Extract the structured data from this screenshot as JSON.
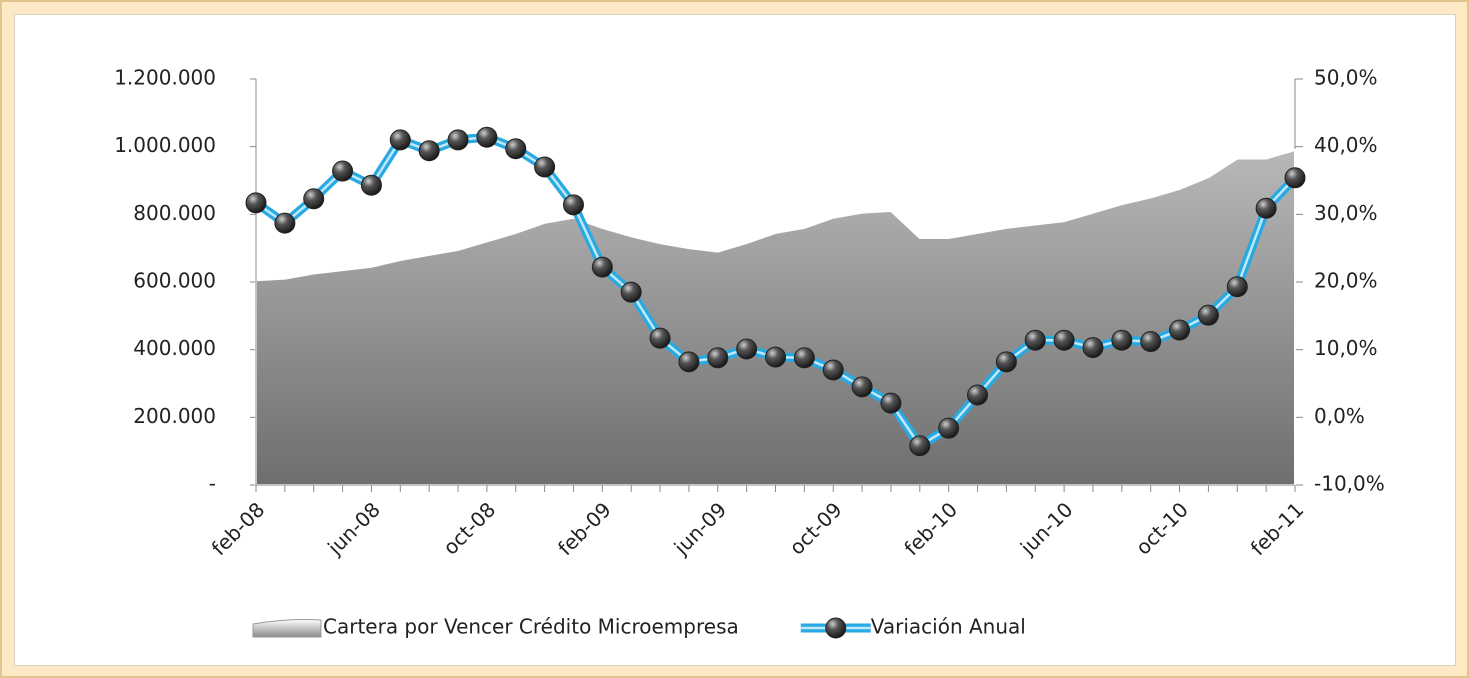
{
  "chart_data": {
    "type": "area",
    "categories": [
      "feb-08",
      null,
      null,
      null,
      "jun-08",
      null,
      null,
      null,
      "oct-08",
      null,
      null,
      null,
      "feb-09",
      null,
      null,
      null,
      "jun-09",
      null,
      null,
      null,
      "oct-09",
      null,
      null,
      null,
      "feb-10",
      null,
      null,
      null,
      "jun-10",
      null,
      null,
      null,
      "oct-10",
      null,
      null,
      null,
      "feb-11"
    ],
    "series": [
      {
        "name": "Cartera por Vencer Crédito Microempresa",
        "type": "area",
        "color": "#9a9a9a",
        "values": [
          605000,
          610000,
          625000,
          635000,
          645000,
          665000,
          680000,
          695000,
          720000,
          745000,
          775000,
          790000,
          760000,
          735000,
          715000,
          700000,
          690000,
          715000,
          745000,
          760000,
          790000,
          805000,
          810000,
          730000,
          730000,
          745000,
          760000,
          770000,
          780000,
          805000,
          830000,
          850000,
          875000,
          910000,
          965000,
          965000,
          990000
        ]
      },
      {
        "name": "Variación Anual",
        "type": "line",
        "axis": "y2",
        "color": "#29a9e1",
        "values": [
          31.7,
          28.7,
          32.3,
          36.4,
          34.3,
          41.0,
          39.4,
          41.0,
          41.4,
          39.7,
          37.0,
          31.4,
          22.2,
          18.5,
          11.7,
          8.2,
          8.8,
          10.1,
          8.9,
          8.8,
          7.0,
          4.5,
          2.1,
          -4.2,
          -1.6,
          3.3,
          8.2,
          11.4,
          11.4,
          10.3,
          11.4,
          11.2,
          12.9,
          15.1,
          19.3,
          30.9,
          35.4
        ]
      }
    ],
    "ylim": [
      0,
      1200000
    ],
    "yticks": [
      {
        "value": 0,
        "label": "-"
      },
      {
        "value": 200000,
        "label": "200.000"
      },
      {
        "value": 400000,
        "label": "400.000"
      },
      {
        "value": 600000,
        "label": "600.000"
      },
      {
        "value": 800000,
        "label": "800.000"
      },
      {
        "value": 1000000,
        "label": "1.000.000"
      },
      {
        "value": 1200000,
        "label": "1.200.000"
      }
    ],
    "y2lim": [
      -10,
      50
    ],
    "y2ticks": [
      {
        "value": -10,
        "label": "-10,0%"
      },
      {
        "value": 0,
        "label": "0,0%"
      },
      {
        "value": 10,
        "label": "10,0%"
      },
      {
        "value": 20,
        "label": "20,0%"
      },
      {
        "value": 30,
        "label": "30,0%"
      },
      {
        "value": 40,
        "label": "40,0%"
      },
      {
        "value": 50,
        "label": "50,0%"
      }
    ],
    "legend": "bottom"
  }
}
